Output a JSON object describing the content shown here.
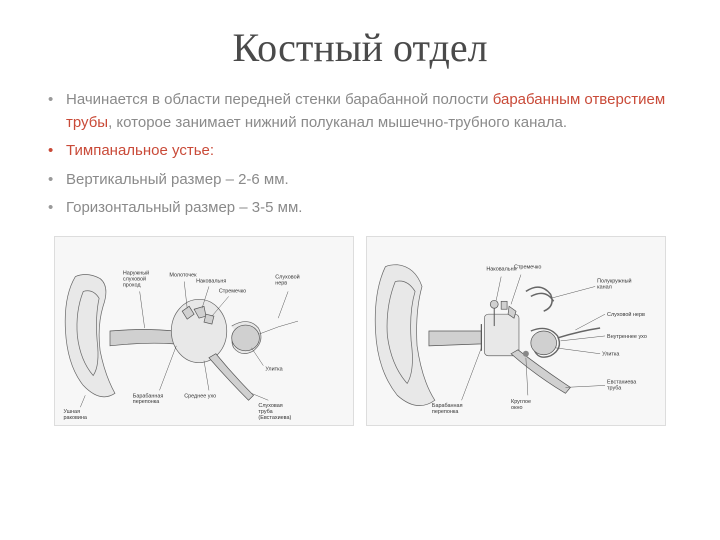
{
  "title": "Костный отдел",
  "bullets": [
    {
      "style": "gray-bullet",
      "segments": [
        {
          "text": "Начинается в области передней стенки барабанной полости  ",
          "cls": ""
        },
        {
          "text": "барабанным отверстием трубы",
          "cls": "highlight-red"
        },
        {
          "text": ", которое занимает нижний полуканал мышечно-трубного канала.",
          "cls": ""
        }
      ]
    },
    {
      "style": "red-bullet",
      "segments": [
        {
          "text": "Тимпанальное устье:",
          "cls": "highlight-red"
        }
      ]
    },
    {
      "style": "gray-bullet",
      "segments": [
        {
          "text": "Вертикальный размер – 2-6 мм.",
          "cls": ""
        }
      ]
    },
    {
      "style": "gray-bullet",
      "segments": [
        {
          "text": "Горизонтальный размер – 3-5 мм.",
          "cls": ""
        }
      ]
    }
  ],
  "diagram1": {
    "labels": {
      "ушная_раковина": "Ушная\nраковина",
      "наружный_слуховой_проход": "Наружный\nслуховой\nпроход",
      "молоточек": "Молоточек",
      "наковальня": "Наковальня",
      "стремечко": "Стремечко",
      "слуховой_нерв": "Слуховой\nнерв",
      "улитка": "Улитка",
      "слуховая_труба": "Слуховая\nтруба\n(Евстахиева)",
      "среднее_ухо": "Среднее ухо",
      "барабанная_перепонка": "Барабанная\nперепонка"
    }
  },
  "diagram2": {
    "labels": {
      "наковальня": "Наковальня",
      "стремечко": "Стремечко",
      "полукружный_канал": "Полукружный\nканал",
      "слуховой_нерв": "Слуховой нерв",
      "внутреннее_ухо": "Внутреннее ухо",
      "улитка": "Улитка",
      "евстахиева_труба": "Евстахиева\nтруба",
      "круглое_окно": "Круглое\nокно",
      "барабанная_перепонка": "Барабанная\nперепонка"
    }
  },
  "colors": {
    "title": "#4a4a4a",
    "body_text": "#8a8a8a",
    "accent_red": "#c94a38",
    "background": "#ffffff"
  }
}
